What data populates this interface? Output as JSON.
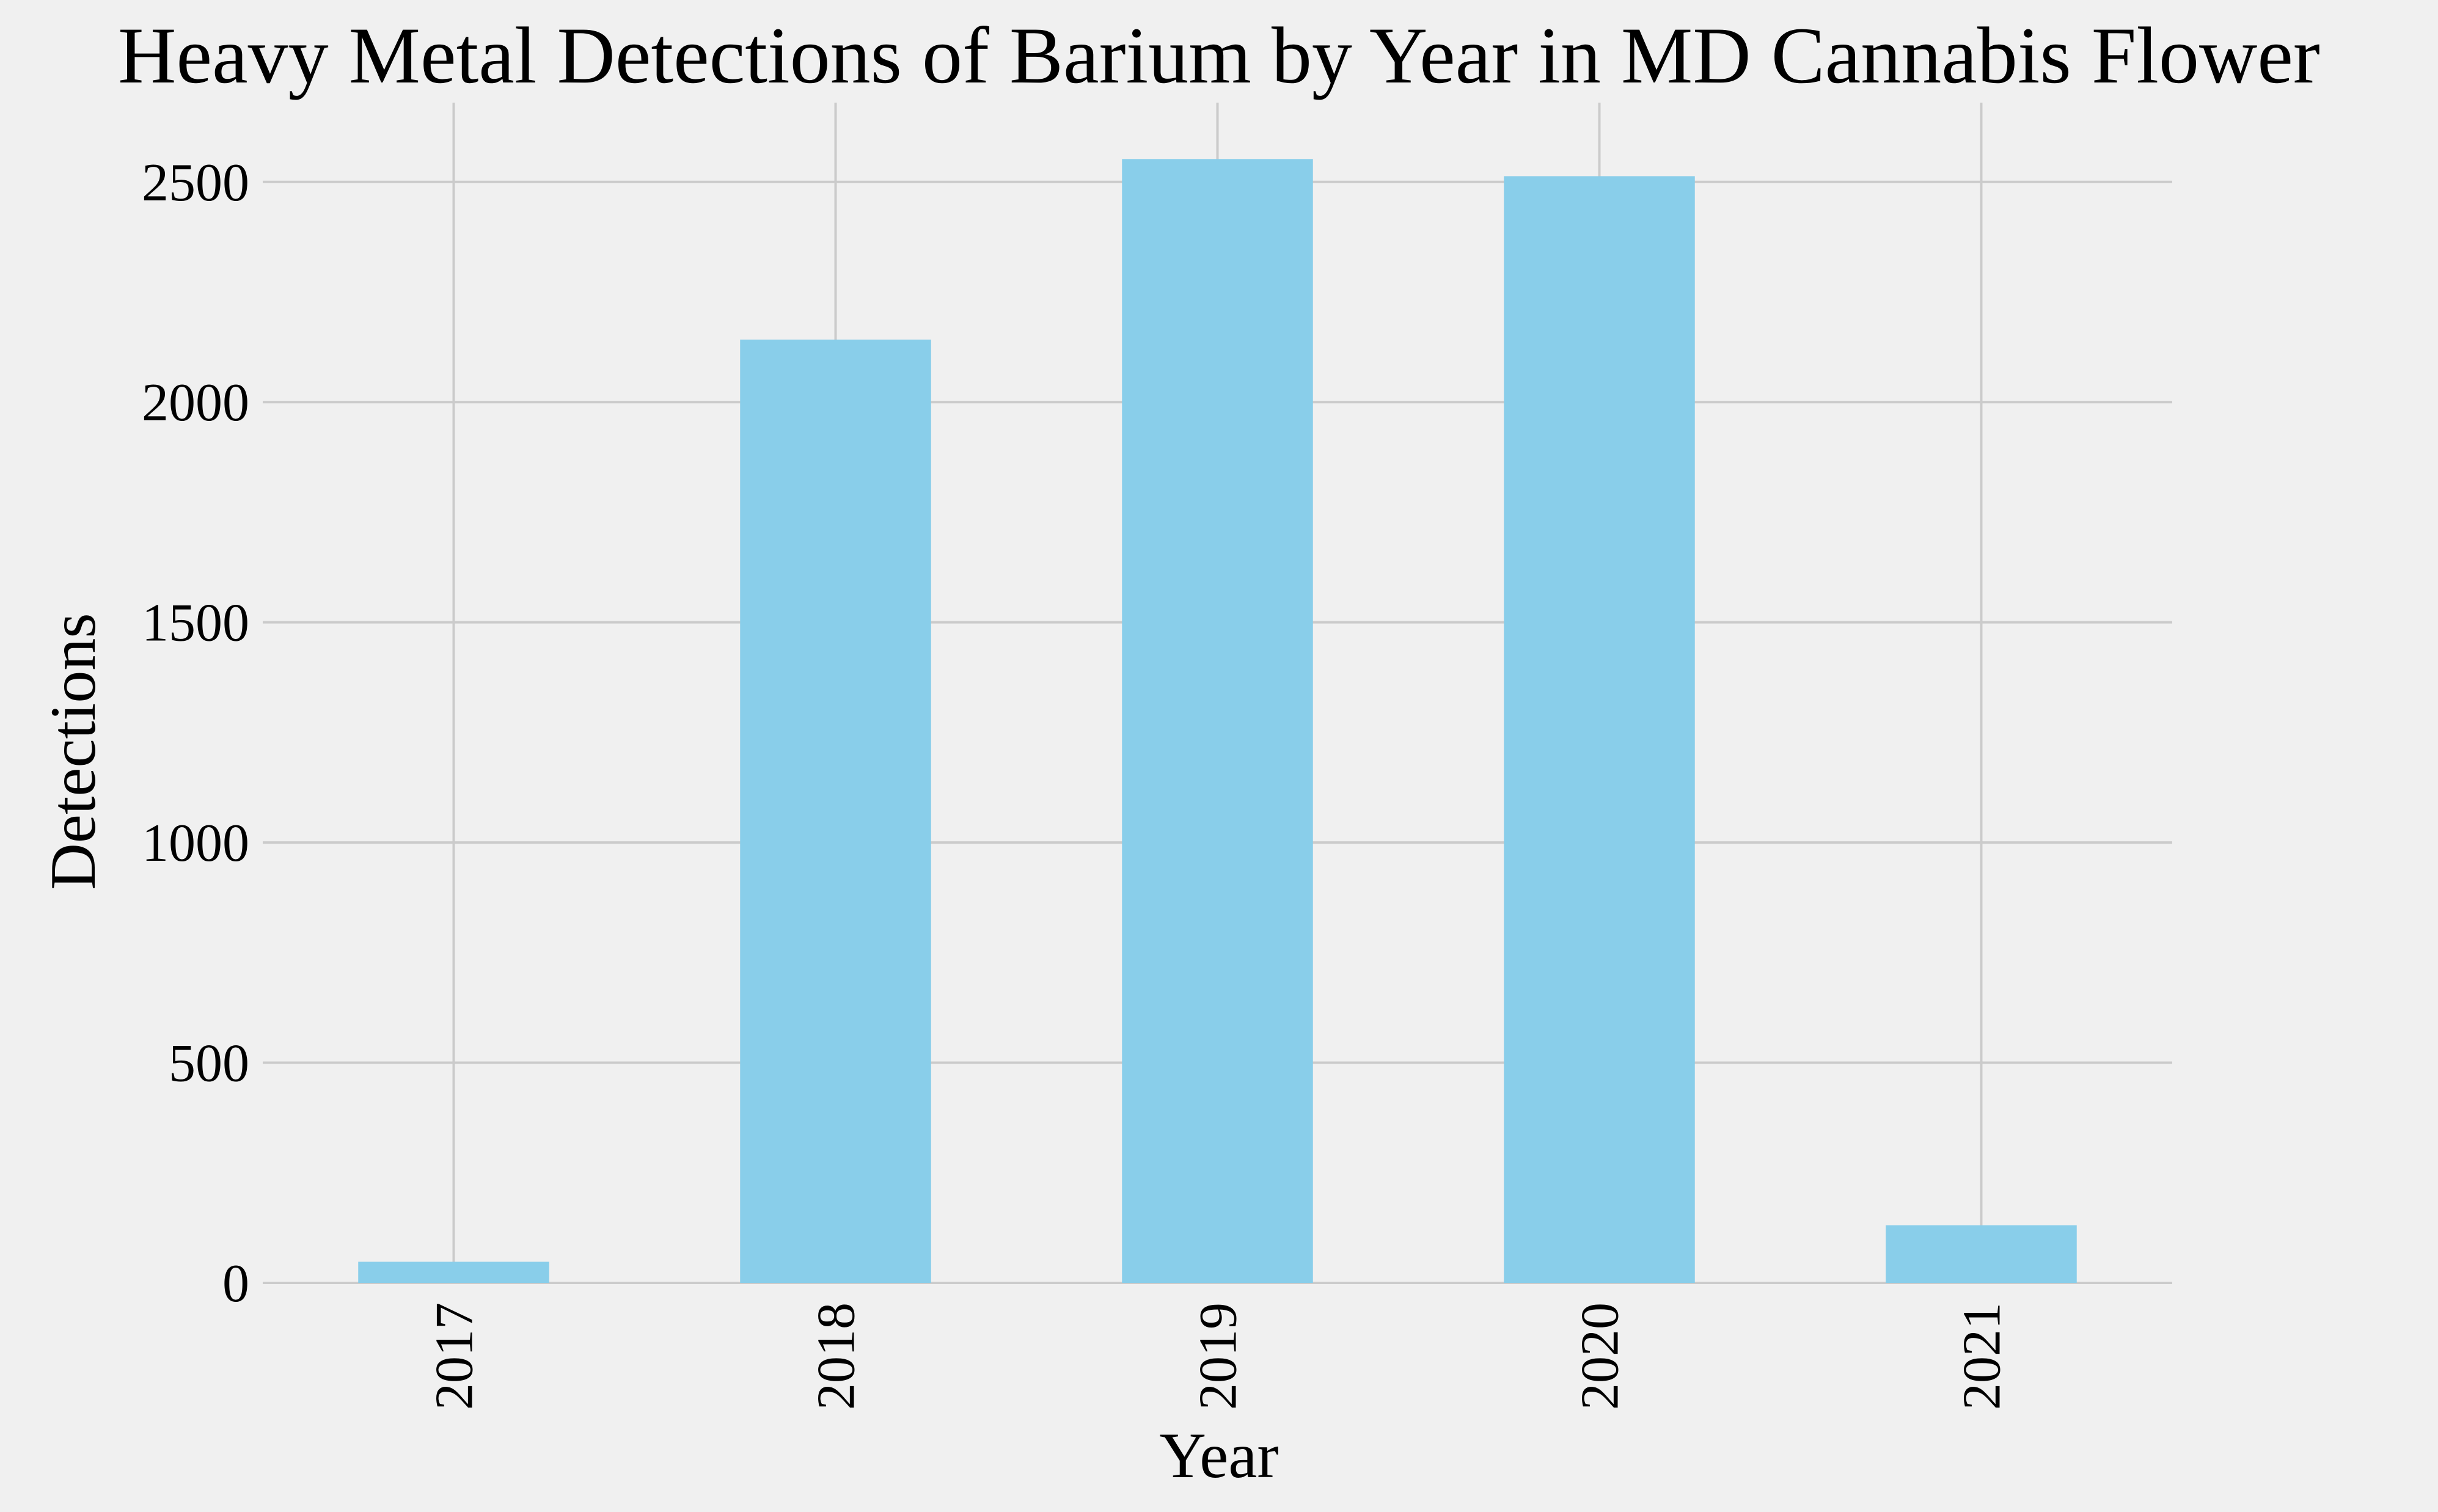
{
  "chart_data": {
    "type": "bar",
    "title": "Heavy Metal Detections of Barium by Year in MD Cannabis Flower",
    "xlabel": "Year",
    "ylabel": "Detections",
    "categories": [
      "2017",
      "2018",
      "2019",
      "2020",
      "2021"
    ],
    "values": [
      48,
      2142,
      2552,
      2513,
      131
    ],
    "yticks": [
      0,
      500,
      1000,
      1500,
      2000,
      2500
    ],
    "ylim": [
      0,
      2680
    ],
    "grid": true,
    "bar_color": "#89ceea",
    "background_color": "#f0f0f0",
    "grid_color": "#cbcbcb",
    "text_color": "#000000"
  }
}
